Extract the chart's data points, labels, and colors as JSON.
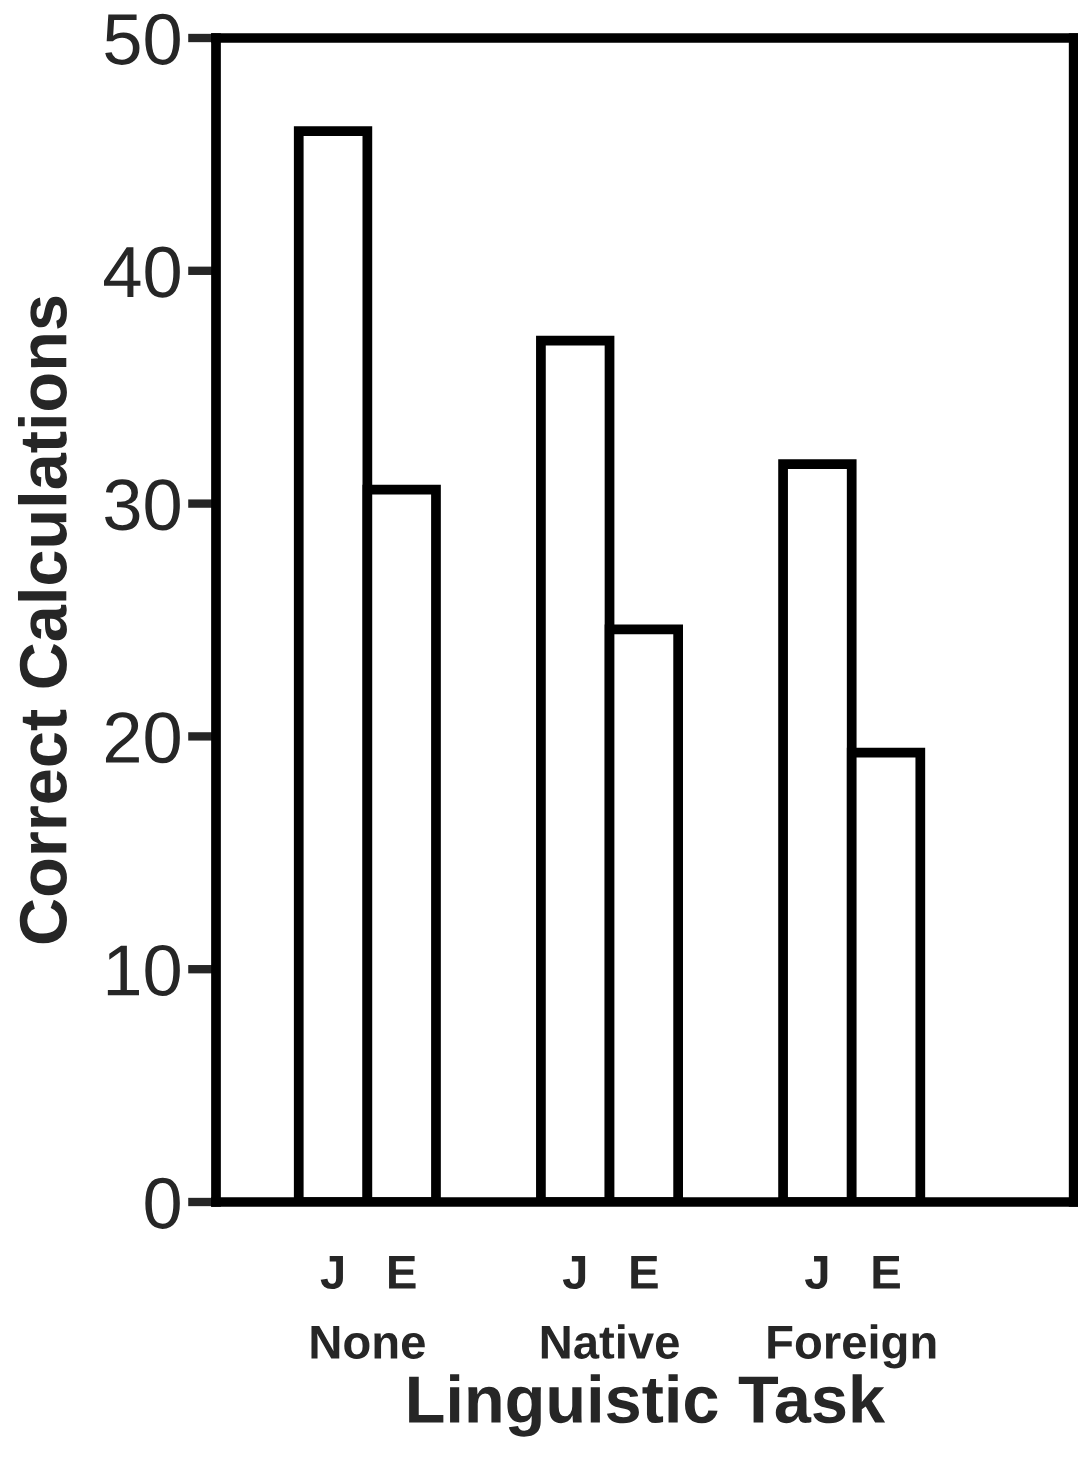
{
  "chart_data": {
    "type": "bar",
    "xlabel": "Linguistic Task",
    "ylabel": "Correct Calculations",
    "categories": [
      "None",
      "Native",
      "Foreign"
    ],
    "series": [
      {
        "name": "J",
        "color": "#ffffff",
        "values": [
          46,
          37,
          31.7
        ]
      },
      {
        "name": "E",
        "color": "#ffffff",
        "values": [
          30.6,
          24.6,
          19.3
        ]
      }
    ],
    "ylim": [
      0,
      50
    ],
    "yticks": [
      0,
      10,
      20,
      30,
      40,
      50
    ],
    "grid": false,
    "legend": false
  }
}
